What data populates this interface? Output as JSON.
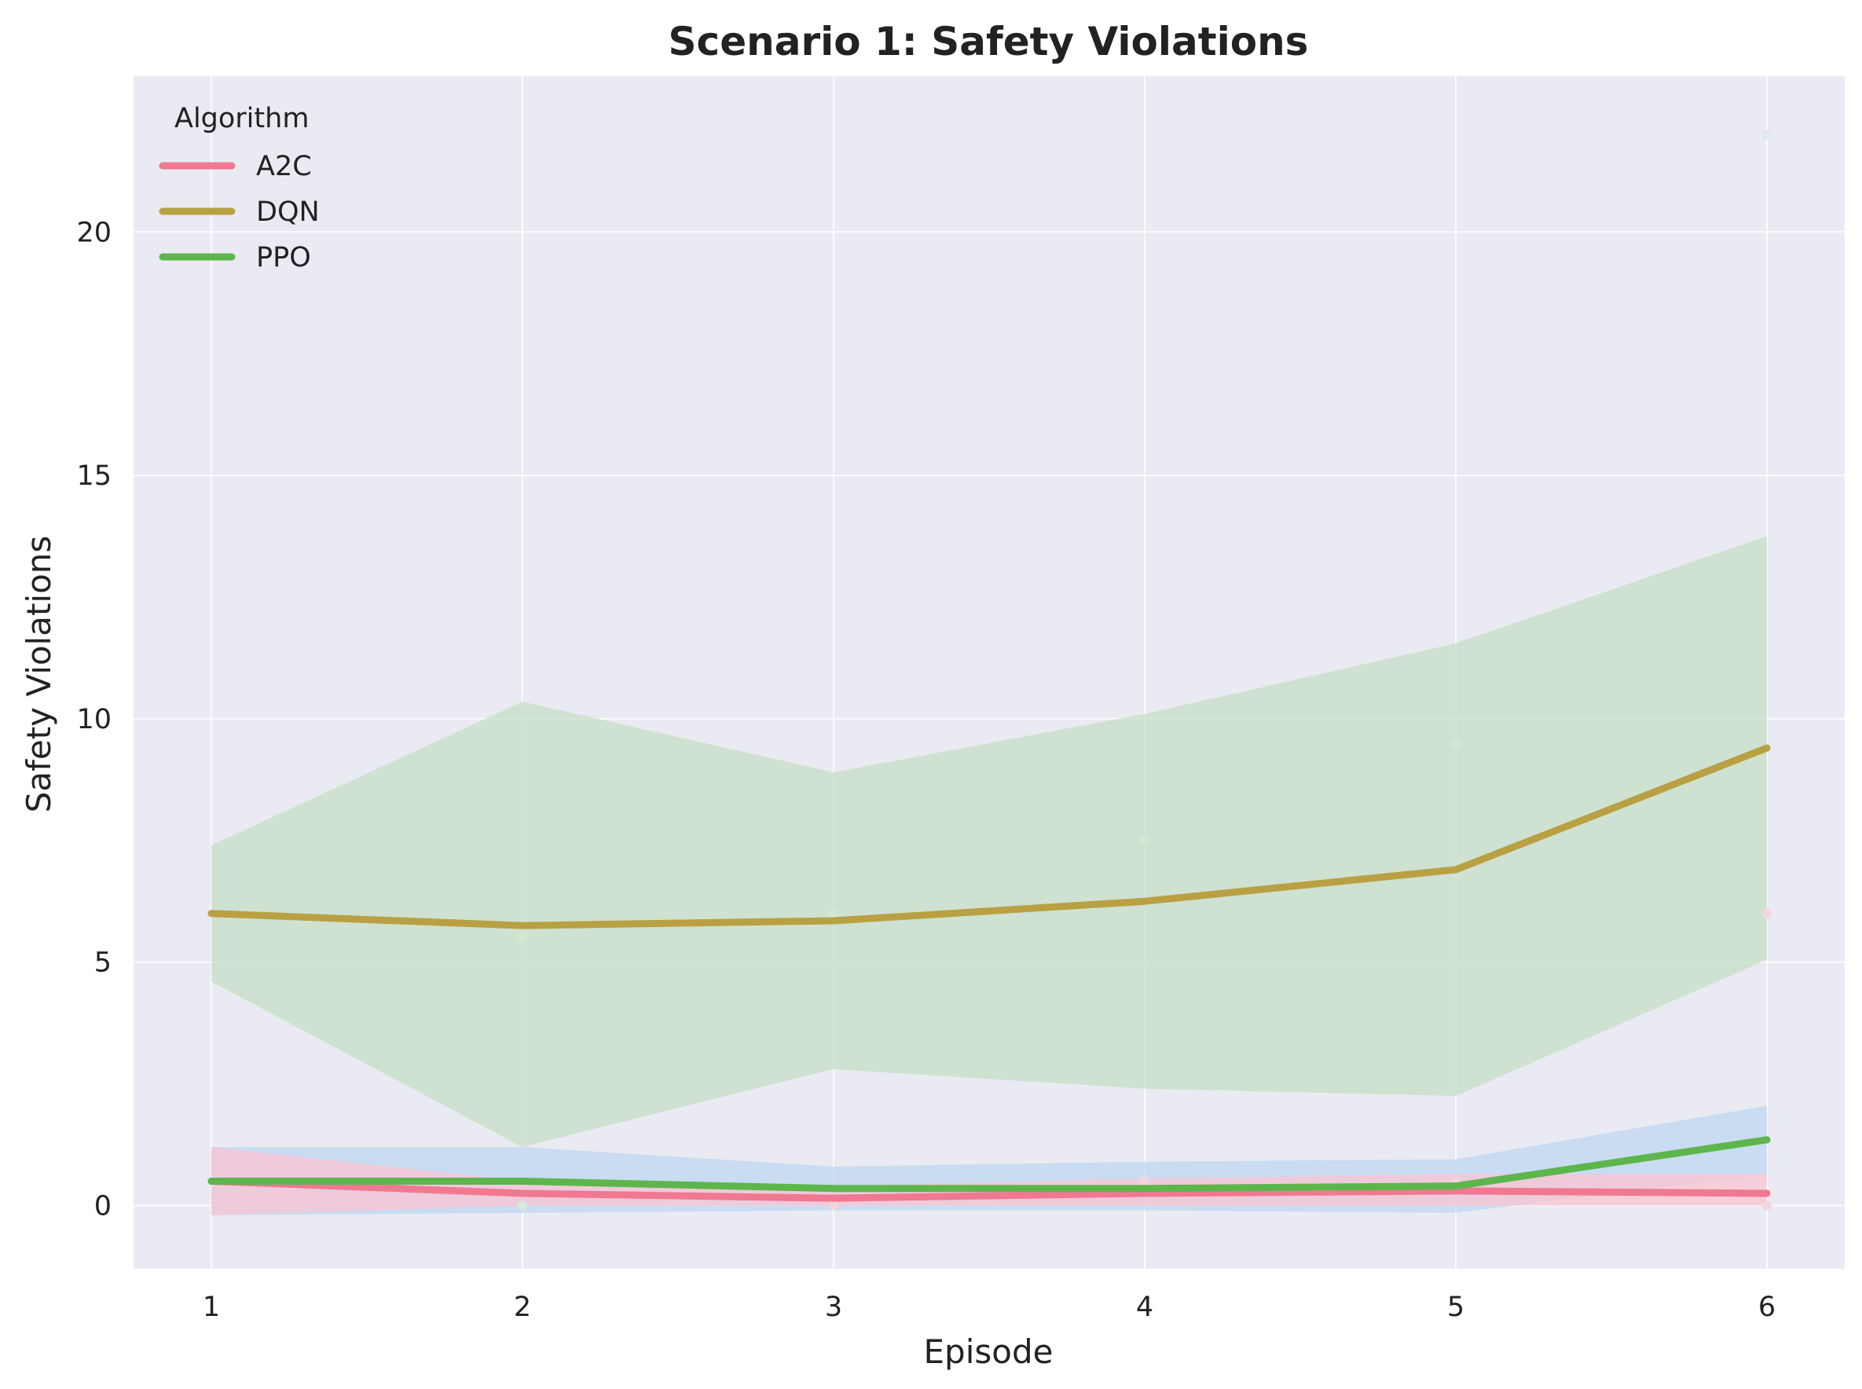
{
  "chart_data": {
    "type": "line",
    "title": "Scenario 1: Safety Violations",
    "xlabel": "Episode",
    "ylabel": "Safety Violations",
    "x": [
      1,
      2,
      3,
      4,
      5,
      6
    ],
    "xlim": [
      0.75,
      6.25
    ],
    "ylim": [
      -1.3,
      23.2
    ],
    "xticks": [
      "1",
      "2",
      "3",
      "4",
      "5",
      "6"
    ],
    "yticks": [
      0,
      5,
      10,
      15,
      20
    ],
    "grid": true,
    "background": "#EAEAF2",
    "legend": {
      "title": "Algorithm",
      "placement": "top-left"
    },
    "series": [
      {
        "name": "A2C",
        "color": "#F07891",
        "band_color": "#F9C4D2",
        "values": [
          0.5,
          0.25,
          0.15,
          0.25,
          0.3,
          0.25
        ],
        "band_lower": [
          -0.2,
          0.0,
          0.0,
          0.0,
          0.0,
          0.0
        ],
        "band_upper": [
          1.2,
          0.5,
          0.4,
          0.55,
          0.65,
          0.65
        ]
      },
      {
        "name": "DQN",
        "color": "#B9A043",
        "band_color": "#C6DFC5",
        "values": [
          6.0,
          5.75,
          5.85,
          6.25,
          6.9,
          9.4
        ],
        "band_lower": [
          4.6,
          1.2,
          2.8,
          2.4,
          2.25,
          5.05
        ],
        "band_upper": [
          7.4,
          10.35,
          8.9,
          10.1,
          11.55,
          13.75
        ]
      },
      {
        "name": "PPO",
        "color": "#5DB64C",
        "band_color": "#BDD7F0",
        "values": [
          0.5,
          0.5,
          0.35,
          0.35,
          0.4,
          1.35
        ],
        "band_lower": [
          -0.2,
          -0.15,
          -0.1,
          -0.1,
          -0.15,
          0.65
        ],
        "band_upper": [
          1.2,
          1.2,
          0.8,
          0.9,
          0.95,
          2.05
        ]
      }
    ],
    "points": [
      {
        "x": 1,
        "y": 0.5,
        "color": "#DDEAF3"
      },
      {
        "x": 2,
        "y": 0.0,
        "color": "#D8EAD8"
      },
      {
        "x": 2,
        "y": 5.5,
        "color": "#D3E8D3"
      },
      {
        "x": 3,
        "y": 0.0,
        "color": "#F3D5DD"
      },
      {
        "x": 3,
        "y": 6.0,
        "color": "#D3E8D3"
      },
      {
        "x": 4,
        "y": 0.5,
        "color": "#F3D5DD"
      },
      {
        "x": 4,
        "y": 7.5,
        "color": "#D3E8D3"
      },
      {
        "x": 5,
        "y": 0.5,
        "color": "#F3D5DD"
      },
      {
        "x": 5,
        "y": 9.5,
        "color": "#D3E8D3"
      },
      {
        "x": 6,
        "y": 0.0,
        "color": "#F3D5DD"
      },
      {
        "x": 6,
        "y": 6.0,
        "color": "#F3D5DD"
      },
      {
        "x": 6,
        "y": 22.0,
        "color": "#DDEAF3"
      }
    ]
  }
}
